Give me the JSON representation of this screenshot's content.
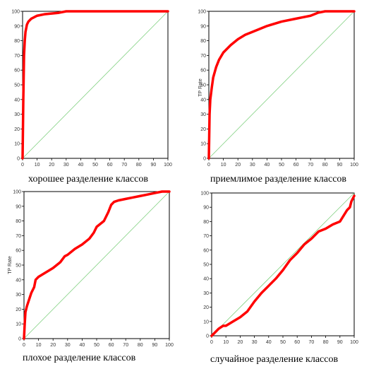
{
  "colors": {
    "roc": "#ff0000",
    "diagonal": "#7fd07f",
    "frame": "#000000"
  },
  "chart_data": [
    {
      "type": "line",
      "title": "хорошее разделение классов",
      "ylabel": "",
      "xlim": [
        0,
        100
      ],
      "ylim": [
        0,
        100
      ],
      "xticks": [
        0,
        10,
        20,
        30,
        40,
        50,
        60,
        70,
        80,
        90,
        100
      ],
      "yticks": [
        0,
        10,
        20,
        30,
        40,
        50,
        60,
        70,
        80,
        90,
        100
      ],
      "series": [
        {
          "name": "",
          "x": [
            0,
            0.5,
            1,
            1.5,
            2,
            3,
            4,
            6,
            8,
            10,
            15,
            20,
            25,
            30,
            40,
            60,
            80,
            100
          ],
          "y": [
            0,
            40,
            70,
            80,
            86,
            91,
            93,
            95,
            96,
            97,
            98,
            98.5,
            99,
            100,
            100,
            100,
            100,
            100
          ]
        },
        {
          "name": "",
          "x": [
            0,
            100
          ],
          "y": [
            0,
            100
          ]
        }
      ]
    },
    {
      "type": "line",
      "title": "приемлимое разделение классов",
      "ylabel": "TP Rate",
      "xlim": [
        0,
        100
      ],
      "ylim": [
        0,
        100
      ],
      "xticks": [
        0,
        10,
        20,
        30,
        40,
        50,
        60,
        70,
        80,
        90,
        100
      ],
      "yticks": [
        0,
        10,
        20,
        30,
        40,
        50,
        60,
        70,
        80,
        90,
        100
      ],
      "series": [
        {
          "name": "",
          "x": [
            0,
            0.5,
            1,
            2,
            3,
            5,
            7,
            10,
            15,
            20,
            25,
            30,
            40,
            50,
            60,
            65,
            70,
            75,
            80,
            90,
            100
          ],
          "y": [
            0,
            30,
            40,
            48,
            55,
            62,
            67,
            72,
            77,
            81,
            84,
            86,
            90,
            93,
            95,
            96,
            97,
            99,
            100,
            100,
            100
          ]
        },
        {
          "name": "",
          "x": [
            0,
            100
          ],
          "y": [
            0,
            100
          ]
        }
      ]
    },
    {
      "type": "line",
      "title": "плохое разделение классов",
      "ylabel": "TP Rate",
      "xlim": [
        0,
        100
      ],
      "ylim": [
        0,
        100
      ],
      "xticks": [
        0,
        10,
        20,
        30,
        40,
        50,
        60,
        70,
        80,
        90,
        100
      ],
      "yticks": [
        0,
        10,
        20,
        30,
        40,
        50,
        60,
        70,
        80,
        90,
        100
      ],
      "series": [
        {
          "name": "",
          "x": [
            0,
            0.5,
            1,
            2,
            3,
            5,
            7,
            8,
            10,
            15,
            20,
            25,
            28,
            30,
            35,
            40,
            45,
            48,
            50,
            55,
            58,
            60,
            62,
            65,
            70,
            75,
            80,
            85,
            90,
            95,
            100
          ],
          "y": [
            0,
            10,
            18,
            22,
            25,
            31,
            35,
            40,
            42,
            45,
            48,
            52,
            56,
            57,
            61,
            64,
            68,
            72,
            76,
            80,
            86,
            91,
            93,
            94,
            95,
            96,
            97,
            98,
            99,
            100,
            100
          ]
        },
        {
          "name": "",
          "x": [
            0,
            100
          ],
          "y": [
            0,
            100
          ]
        }
      ]
    },
    {
      "type": "line",
      "title": "случайное разделение классов",
      "ylabel": "",
      "xlim": [
        0,
        100
      ],
      "ylim": [
        0,
        100
      ],
      "xticks": [
        0,
        10,
        20,
        30,
        40,
        50,
        60,
        70,
        80,
        90,
        100
      ],
      "yticks": [
        0,
        10,
        20,
        30,
        40,
        50,
        60,
        70,
        80,
        90,
        100
      ],
      "series": [
        {
          "name": "",
          "x": [
            0,
            2,
            5,
            8,
            10,
            15,
            20,
            25,
            30,
            35,
            40,
            45,
            50,
            55,
            60,
            65,
            70,
            75,
            80,
            85,
            90,
            95,
            97,
            98,
            100
          ],
          "y": [
            0,
            2,
            5,
            7,
            7,
            10,
            13,
            17,
            24,
            30,
            35,
            40,
            46,
            53,
            58,
            64,
            68,
            73,
            75,
            78,
            80,
            88,
            90,
            94,
            98
          ]
        },
        {
          "name": "",
          "x": [
            0,
            100
          ],
          "y": [
            0,
            100
          ]
        }
      ]
    }
  ]
}
